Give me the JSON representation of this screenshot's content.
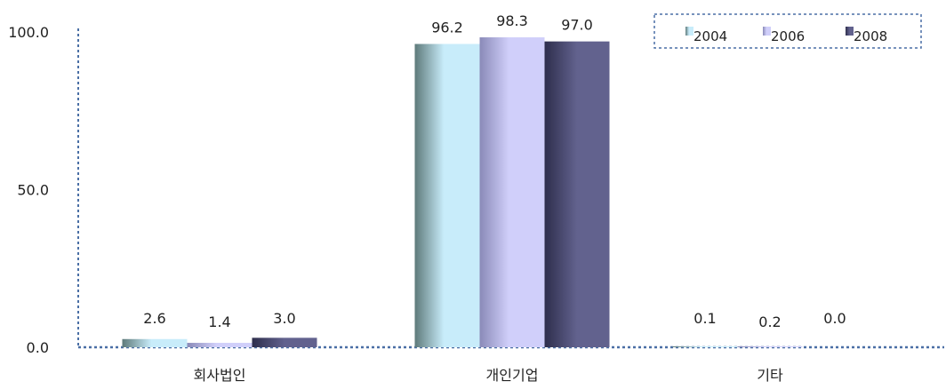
{
  "chart_data": {
    "type": "bar",
    "categories": [
      "회사법인",
      "개인기업",
      "기타"
    ],
    "series": [
      {
        "name": "2004",
        "values": [
          2.6,
          96.2,
          0.1
        ],
        "labels": [
          "2.6",
          "96.2",
          "0.1"
        ]
      },
      {
        "name": "2006",
        "values": [
          1.4,
          98.3,
          0.2
        ],
        "labels": [
          "1.4",
          "98.3",
          "0.2"
        ]
      },
      {
        "name": "2008",
        "values": [
          3.0,
          97.0,
          0.0
        ],
        "labels": [
          "3.0",
          "97.0",
          "0.0"
        ]
      }
    ],
    "yticks": [
      "0.0",
      "50.0",
      "100.0"
    ],
    "ytick_values": [
      0,
      50,
      100
    ],
    "ylim": [
      0,
      100
    ],
    "xlabel": "",
    "ylabel": "",
    "title": "",
    "legend_position": "top-right",
    "grid": false,
    "colors": {
      "series_2004": [
        "#5e7a7a",
        "#c8ecfa"
      ],
      "series_2006": [
        "#8a8ab8",
        "#d0cffa"
      ],
      "series_2008": [
        "#303050",
        "#60608c"
      ],
      "axis": "#4a6fa5"
    }
  }
}
